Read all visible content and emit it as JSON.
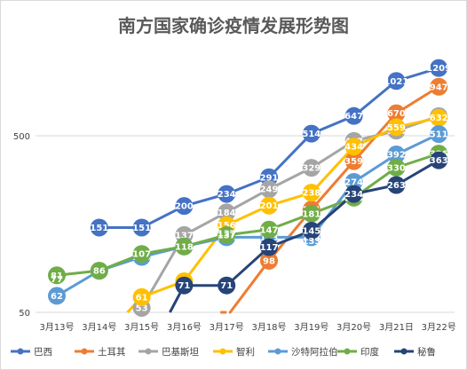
{
  "chart_data": {
    "type": "line",
    "title": "南方国家确诊疫情发展形势图",
    "xlabel": "",
    "ylabel": "",
    "y_scale": "log",
    "ylim": [
      50,
      1500
    ],
    "y_ticks": [
      50,
      500
    ],
    "legend_position": "bottom",
    "categories": [
      "3月13号",
      "3月14号",
      "3月15号",
      "3月16号",
      "3月17号",
      "3月18号",
      "3月19号",
      "3月20号",
      "3月21日",
      "3月22号"
    ],
    "series": [
      {
        "name": "巴西",
        "color": "#4472C4",
        "values": [
          null,
          151,
          151,
          200,
          234,
          291,
          514,
          647,
          1021,
          1209
        ]
      },
      {
        "name": "土耳其",
        "color": "#ED7D31",
        "values": [
          null,
          null,
          null,
          null,
          47,
          98,
          191,
          359,
          670,
          947
        ]
      },
      {
        "name": "巴基斯坦",
        "color": "#A5A5A5",
        "values": [
          null,
          null,
          53,
          137,
          184,
          249,
          329,
          467,
          534,
          646
        ]
      },
      {
        "name": "智利",
        "color": "#FFC000",
        "values": [
          null,
          null,
          61,
          75,
          156,
          201,
          238,
          434,
          559,
          632
        ]
      },
      {
        "name": "沙特阿拉伯",
        "color": "#5B9BD5",
        "values": [
          62,
          86,
          103,
          118,
          133,
          133,
          133,
          274,
          392,
          511
        ]
      },
      {
        "name": "印度",
        "color": "#70AD47",
        "values": [
          81,
          86,
          107,
          118,
          137,
          147,
          181,
          223,
          330,
          396
        ]
      },
      {
        "name": "秘鲁",
        "color": "#264478",
        "values": [
          null,
          null,
          null,
          71,
          71,
          117,
          145,
          234,
          263,
          363
        ]
      }
    ]
  },
  "labels_extra": {
    "chile_x1": "77",
    "saudi_x4": "137",
    "peru_x6": "133"
  }
}
